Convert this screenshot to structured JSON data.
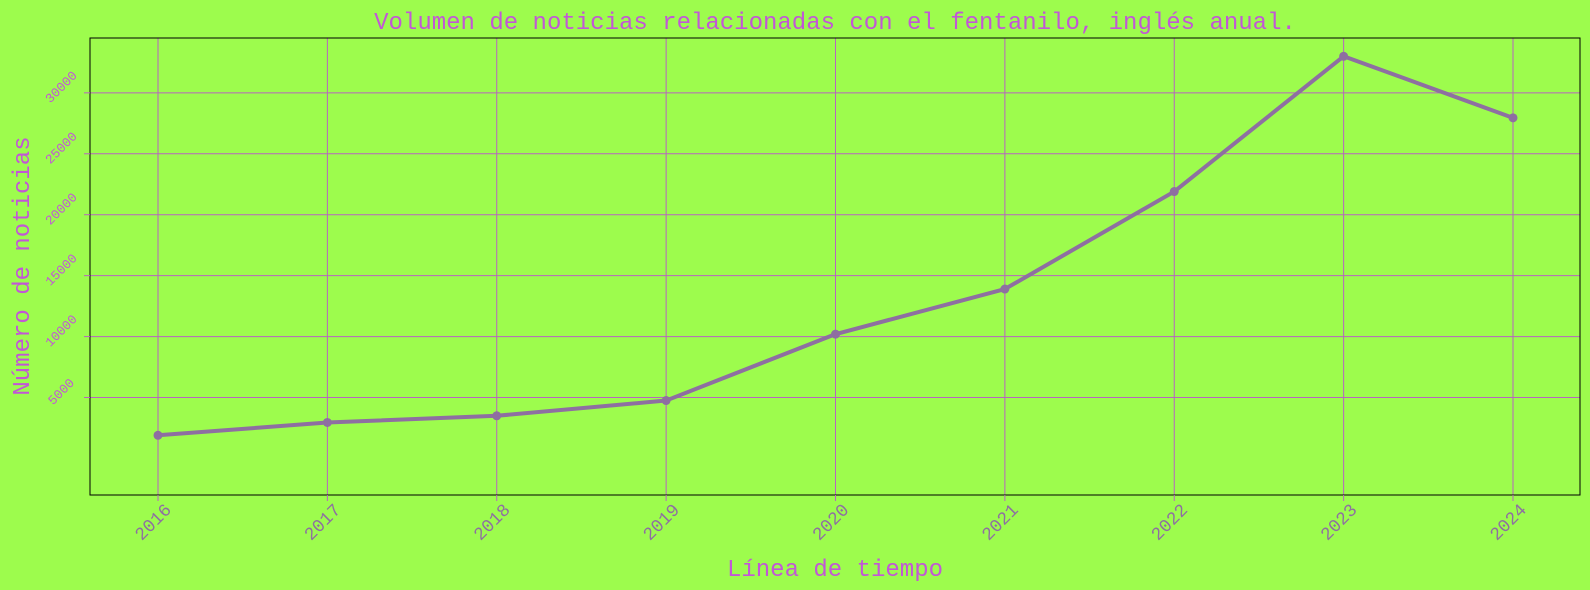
{
  "colors": {
    "background": "#9dfc4d",
    "line": "#8e6fa1",
    "grid": "#b864c0",
    "text": "#c257d6",
    "xtick_text": "#8e6fa1",
    "frame": "#000000"
  },
  "chart_data": {
    "type": "line",
    "title": "Volumen de noticias relacionadas con el fentanilo, inglés anual.",
    "xlabel": "Línea de tiempo",
    "ylabel": "Número de noticias",
    "categories": [
      "2016",
      "2017",
      "2018",
      "2019",
      "2020",
      "2021",
      "2022",
      "2023",
      "2024"
    ],
    "values": [
      1900,
      2950,
      3500,
      4750,
      10200,
      13900,
      21900,
      33000,
      27950
    ],
    "ylim": [
      -3000,
      34500
    ],
    "yticks": [
      5000,
      10000,
      15000,
      20000,
      25000,
      30000
    ],
    "grid": true,
    "markers": true
  }
}
